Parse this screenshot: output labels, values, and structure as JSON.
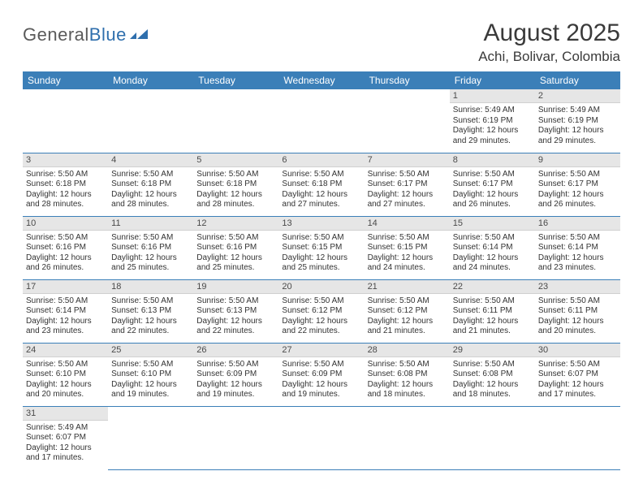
{
  "logo": {
    "general": "General",
    "blue": "Blue"
  },
  "month_title": "August 2025",
  "location": "Achi, Bolivar, Colombia",
  "colors": {
    "header_bg": "#3b7fb8",
    "header_text": "#ffffff",
    "daynum_bg": "#e6e6e6",
    "row_divider": "#3b7fb8",
    "title_color": "#3a3a3a",
    "body_text": "#333333"
  },
  "weekdays": [
    "Sunday",
    "Monday",
    "Tuesday",
    "Wednesday",
    "Thursday",
    "Friday",
    "Saturday"
  ],
  "weeks": [
    [
      {
        "empty": true
      },
      {
        "empty": true
      },
      {
        "empty": true
      },
      {
        "empty": true
      },
      {
        "empty": true
      },
      {
        "num": "1",
        "sunrise": "Sunrise: 5:49 AM",
        "sunset": "Sunset: 6:19 PM",
        "daylight": "Daylight: 12 hours and 29 minutes."
      },
      {
        "num": "2",
        "sunrise": "Sunrise: 5:49 AM",
        "sunset": "Sunset: 6:19 PM",
        "daylight": "Daylight: 12 hours and 29 minutes."
      }
    ],
    [
      {
        "num": "3",
        "sunrise": "Sunrise: 5:50 AM",
        "sunset": "Sunset: 6:18 PM",
        "daylight": "Daylight: 12 hours and 28 minutes."
      },
      {
        "num": "4",
        "sunrise": "Sunrise: 5:50 AM",
        "sunset": "Sunset: 6:18 PM",
        "daylight": "Daylight: 12 hours and 28 minutes."
      },
      {
        "num": "5",
        "sunrise": "Sunrise: 5:50 AM",
        "sunset": "Sunset: 6:18 PM",
        "daylight": "Daylight: 12 hours and 28 minutes."
      },
      {
        "num": "6",
        "sunrise": "Sunrise: 5:50 AM",
        "sunset": "Sunset: 6:18 PM",
        "daylight": "Daylight: 12 hours and 27 minutes."
      },
      {
        "num": "7",
        "sunrise": "Sunrise: 5:50 AM",
        "sunset": "Sunset: 6:17 PM",
        "daylight": "Daylight: 12 hours and 27 minutes."
      },
      {
        "num": "8",
        "sunrise": "Sunrise: 5:50 AM",
        "sunset": "Sunset: 6:17 PM",
        "daylight": "Daylight: 12 hours and 26 minutes."
      },
      {
        "num": "9",
        "sunrise": "Sunrise: 5:50 AM",
        "sunset": "Sunset: 6:17 PM",
        "daylight": "Daylight: 12 hours and 26 minutes."
      }
    ],
    [
      {
        "num": "10",
        "sunrise": "Sunrise: 5:50 AM",
        "sunset": "Sunset: 6:16 PM",
        "daylight": "Daylight: 12 hours and 26 minutes."
      },
      {
        "num": "11",
        "sunrise": "Sunrise: 5:50 AM",
        "sunset": "Sunset: 6:16 PM",
        "daylight": "Daylight: 12 hours and 25 minutes."
      },
      {
        "num": "12",
        "sunrise": "Sunrise: 5:50 AM",
        "sunset": "Sunset: 6:16 PM",
        "daylight": "Daylight: 12 hours and 25 minutes."
      },
      {
        "num": "13",
        "sunrise": "Sunrise: 5:50 AM",
        "sunset": "Sunset: 6:15 PM",
        "daylight": "Daylight: 12 hours and 25 minutes."
      },
      {
        "num": "14",
        "sunrise": "Sunrise: 5:50 AM",
        "sunset": "Sunset: 6:15 PM",
        "daylight": "Daylight: 12 hours and 24 minutes."
      },
      {
        "num": "15",
        "sunrise": "Sunrise: 5:50 AM",
        "sunset": "Sunset: 6:14 PM",
        "daylight": "Daylight: 12 hours and 24 minutes."
      },
      {
        "num": "16",
        "sunrise": "Sunrise: 5:50 AM",
        "sunset": "Sunset: 6:14 PM",
        "daylight": "Daylight: 12 hours and 23 minutes."
      }
    ],
    [
      {
        "num": "17",
        "sunrise": "Sunrise: 5:50 AM",
        "sunset": "Sunset: 6:14 PM",
        "daylight": "Daylight: 12 hours and 23 minutes."
      },
      {
        "num": "18",
        "sunrise": "Sunrise: 5:50 AM",
        "sunset": "Sunset: 6:13 PM",
        "daylight": "Daylight: 12 hours and 22 minutes."
      },
      {
        "num": "19",
        "sunrise": "Sunrise: 5:50 AM",
        "sunset": "Sunset: 6:13 PM",
        "daylight": "Daylight: 12 hours and 22 minutes."
      },
      {
        "num": "20",
        "sunrise": "Sunrise: 5:50 AM",
        "sunset": "Sunset: 6:12 PM",
        "daylight": "Daylight: 12 hours and 22 minutes."
      },
      {
        "num": "21",
        "sunrise": "Sunrise: 5:50 AM",
        "sunset": "Sunset: 6:12 PM",
        "daylight": "Daylight: 12 hours and 21 minutes."
      },
      {
        "num": "22",
        "sunrise": "Sunrise: 5:50 AM",
        "sunset": "Sunset: 6:11 PM",
        "daylight": "Daylight: 12 hours and 21 minutes."
      },
      {
        "num": "23",
        "sunrise": "Sunrise: 5:50 AM",
        "sunset": "Sunset: 6:11 PM",
        "daylight": "Daylight: 12 hours and 20 minutes."
      }
    ],
    [
      {
        "num": "24",
        "sunrise": "Sunrise: 5:50 AM",
        "sunset": "Sunset: 6:10 PM",
        "daylight": "Daylight: 12 hours and 20 minutes."
      },
      {
        "num": "25",
        "sunrise": "Sunrise: 5:50 AM",
        "sunset": "Sunset: 6:10 PM",
        "daylight": "Daylight: 12 hours and 19 minutes."
      },
      {
        "num": "26",
        "sunrise": "Sunrise: 5:50 AM",
        "sunset": "Sunset: 6:09 PM",
        "daylight": "Daylight: 12 hours and 19 minutes."
      },
      {
        "num": "27",
        "sunrise": "Sunrise: 5:50 AM",
        "sunset": "Sunset: 6:09 PM",
        "daylight": "Daylight: 12 hours and 19 minutes."
      },
      {
        "num": "28",
        "sunrise": "Sunrise: 5:50 AM",
        "sunset": "Sunset: 6:08 PM",
        "daylight": "Daylight: 12 hours and 18 minutes."
      },
      {
        "num": "29",
        "sunrise": "Sunrise: 5:50 AM",
        "sunset": "Sunset: 6:08 PM",
        "daylight": "Daylight: 12 hours and 18 minutes."
      },
      {
        "num": "30",
        "sunrise": "Sunrise: 5:50 AM",
        "sunset": "Sunset: 6:07 PM",
        "daylight": "Daylight: 12 hours and 17 minutes."
      }
    ],
    [
      {
        "num": "31",
        "sunrise": "Sunrise: 5:49 AM",
        "sunset": "Sunset: 6:07 PM",
        "daylight": "Daylight: 12 hours and 17 minutes."
      },
      {
        "empty": true
      },
      {
        "empty": true
      },
      {
        "empty": true
      },
      {
        "empty": true
      },
      {
        "empty": true
      },
      {
        "empty": true
      }
    ]
  ]
}
